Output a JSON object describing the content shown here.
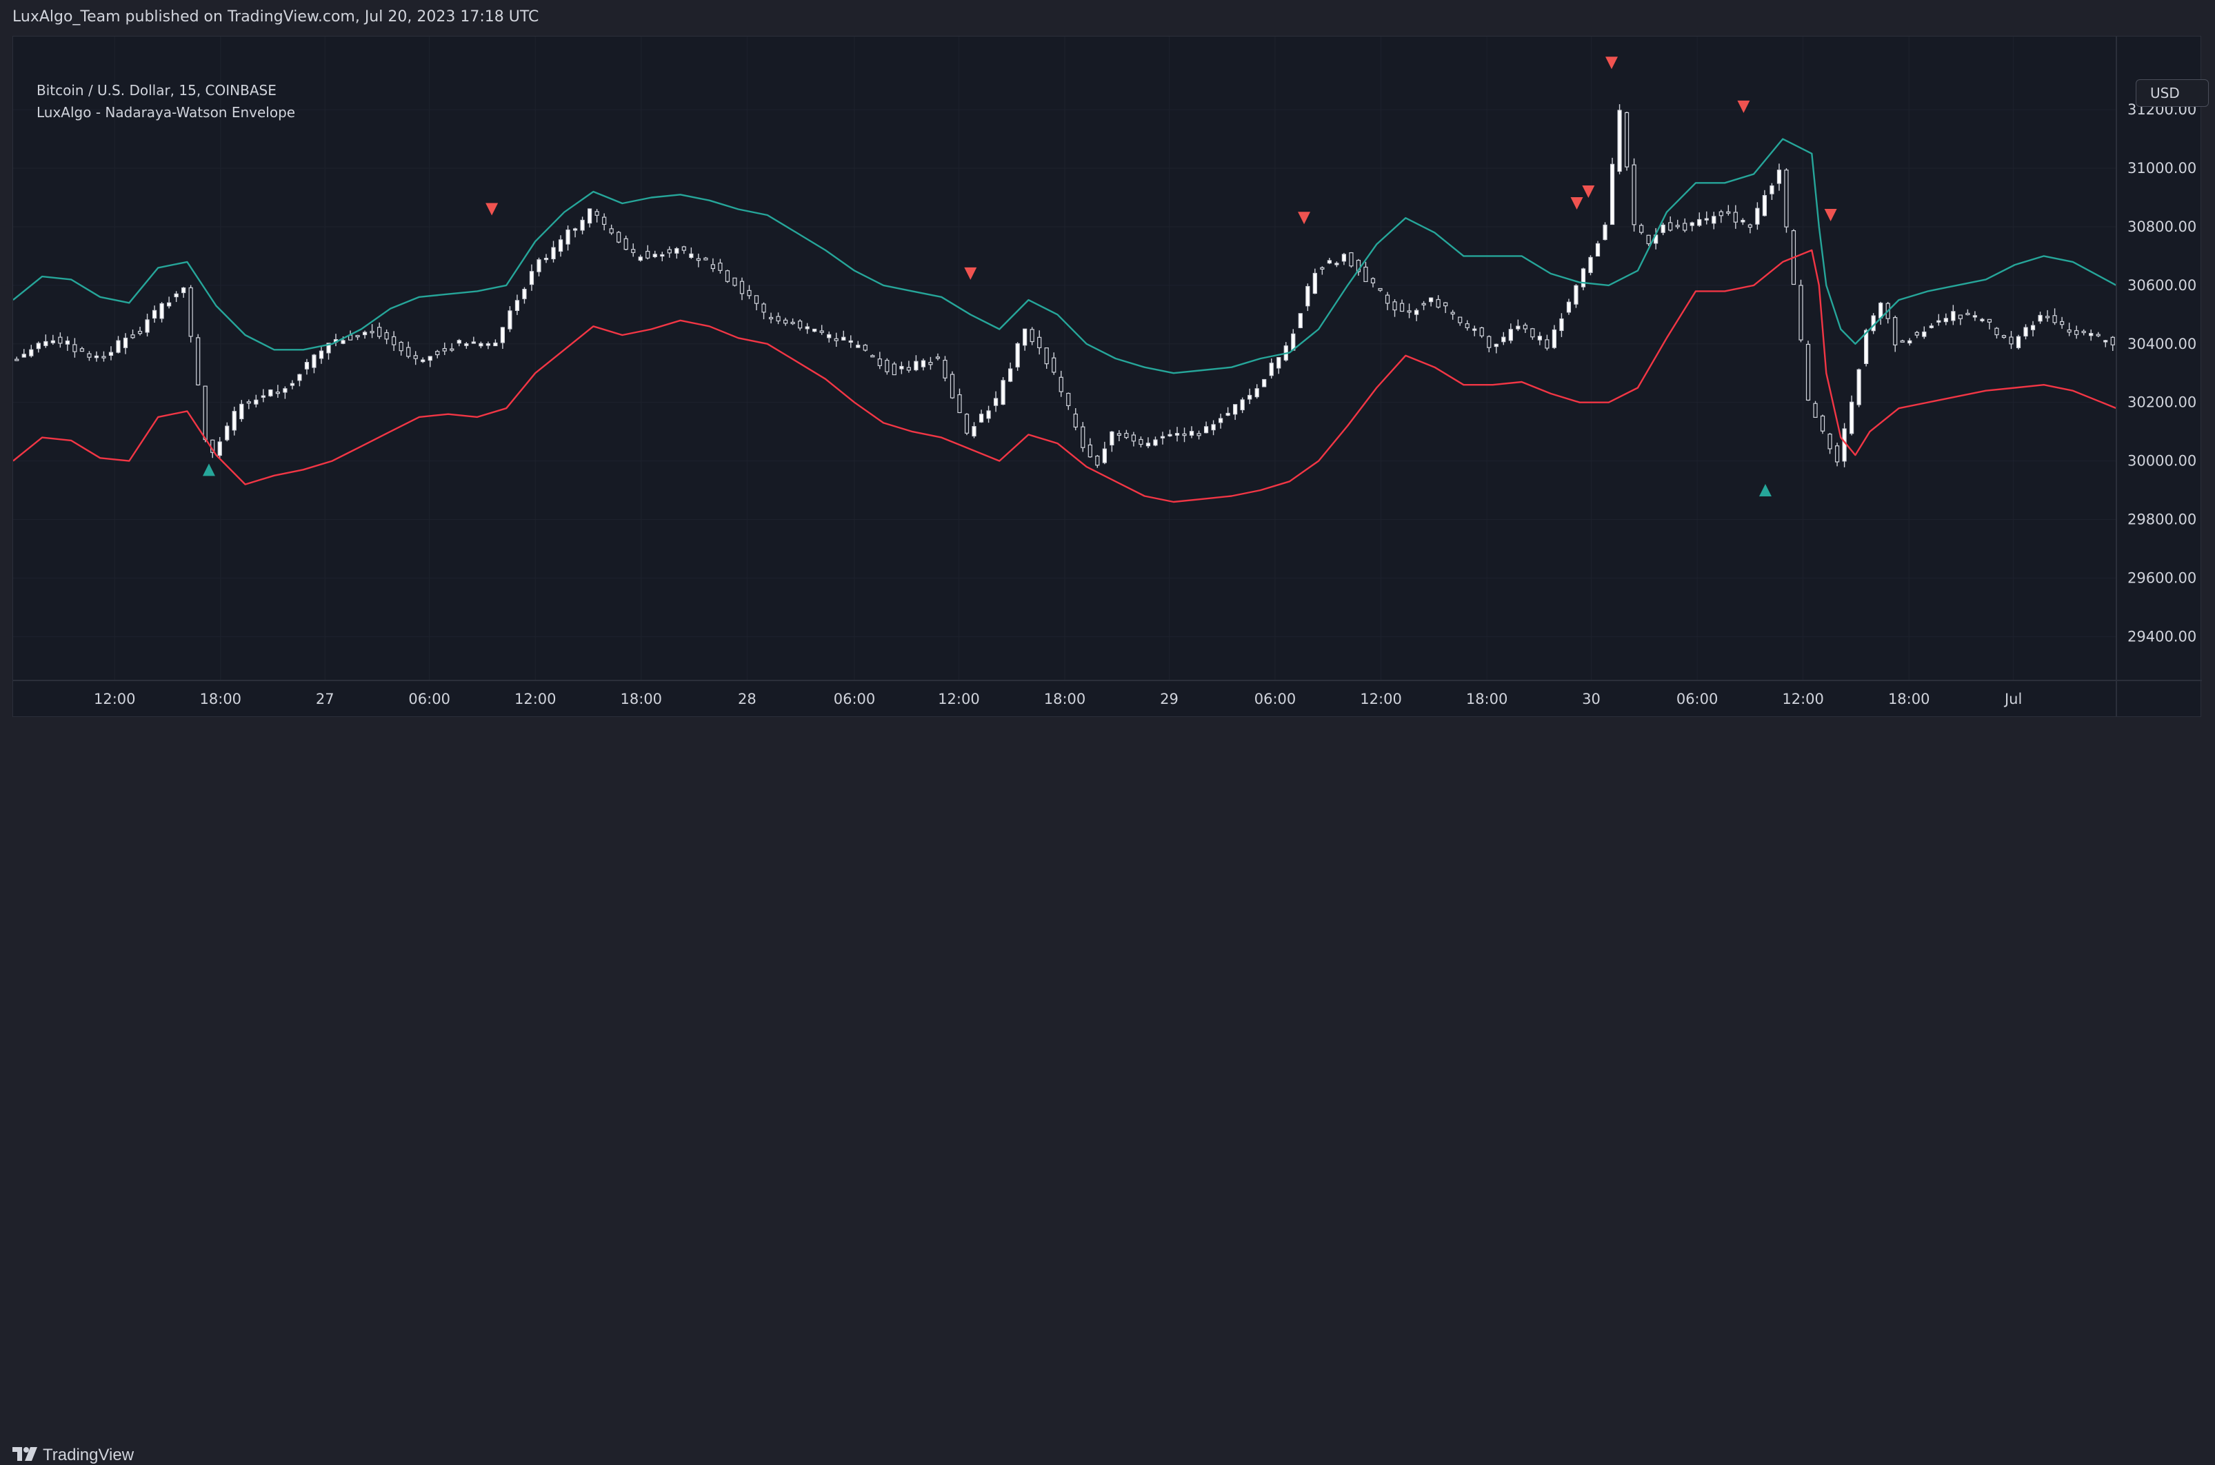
{
  "header": {
    "published": "LuxAlgo_Team published on TradingView.com, Jul 20, 2023 17:18 UTC"
  },
  "legend": {
    "symbol": "Bitcoin / U.S. Dollar, 15, COINBASE",
    "indicator": "LuxAlgo - Nadaraya-Watson Envelope"
  },
  "currency": "USD",
  "footer": {
    "brand": "TradingView"
  },
  "colors": {
    "upper_band": "#26a69a",
    "lower_band": "#f23645",
    "candle": "#d1d4dc",
    "buy_marker": "#26a69a",
    "sell_marker": "#f05350",
    "background": "#161a24"
  },
  "chart_data": {
    "type": "line",
    "title": "Bitcoin / U.S. Dollar, 15, COINBASE",
    "ylim": [
      29250,
      31450
    ],
    "y_ticks": [
      "31200.00",
      "31000.00",
      "30800.00",
      "30600.00",
      "30400.00",
      "30200.00",
      "30000.00",
      "29800.00",
      "29600.00",
      "29400.00"
    ],
    "x_range": [
      0,
      145
    ],
    "x_ticks": [
      {
        "x": 7,
        "label": "12:00"
      },
      {
        "x": 14.3,
        "label": "18:00"
      },
      {
        "x": 21.5,
        "label": "27"
      },
      {
        "x": 28.7,
        "label": "06:00"
      },
      {
        "x": 36,
        "label": "12:00"
      },
      {
        "x": 43.3,
        "label": "18:00"
      },
      {
        "x": 50.6,
        "label": "28"
      },
      {
        "x": 58,
        "label": "06:00"
      },
      {
        "x": 65.2,
        "label": "12:00"
      },
      {
        "x": 72.5,
        "label": "18:00"
      },
      {
        "x": 79.7,
        "label": "29"
      },
      {
        "x": 87,
        "label": "06:00"
      },
      {
        "x": 94.3,
        "label": "12:00"
      },
      {
        "x": 101.6,
        "label": "18:00"
      },
      {
        "x": 108.8,
        "label": "30"
      },
      {
        "x": 116.1,
        "label": "06:00"
      },
      {
        "x": 123.4,
        "label": "12:00"
      },
      {
        "x": 130.7,
        "label": "18:00"
      },
      {
        "x": 137.9,
        "label": "Jul"
      }
    ],
    "price": {
      "x": [
        0,
        3,
        6,
        9,
        12,
        13.7,
        16,
        19,
        22,
        25,
        28,
        31,
        33.5,
        36,
        38,
        40,
        43,
        46,
        49,
        52,
        55,
        58,
        61,
        64,
        66,
        68,
        70,
        72,
        74,
        75,
        76,
        78,
        80,
        82,
        85,
        88,
        90,
        92,
        94,
        96,
        98,
        100,
        102,
        104,
        106,
        108,
        110,
        111,
        112,
        113,
        114,
        116,
        118,
        120,
        122,
        124,
        125,
        126,
        127,
        128,
        129,
        130,
        132,
        134,
        136,
        138,
        140,
        142,
        145
      ],
      "y": [
        30350,
        30420,
        30350,
        30450,
        30600,
        30000,
        30200,
        30250,
        30400,
        30450,
        30350,
        30400,
        30400,
        30650,
        30750,
        30850,
        30700,
        30720,
        30650,
        30500,
        30450,
        30400,
        30300,
        30350,
        30100,
        30200,
        30450,
        30300,
        30050,
        30000,
        30100,
        30050,
        30100,
        30100,
        30200,
        30380,
        30650,
        30700,
        30600,
        30500,
        30550,
        30480,
        30400,
        30450,
        30400,
        30600,
        30800,
        31200,
        30800,
        30750,
        30800,
        30800,
        30850,
        30800,
        31000,
        30200,
        30100,
        30000,
        30200,
        30450,
        30550,
        30400,
        30450,
        30500,
        30480,
        30400,
        30500,
        30450,
        30400
      ]
    },
    "series": [
      {
        "name": "Upper",
        "x": [
          0,
          2,
          4,
          6,
          8,
          10,
          12,
          14,
          16,
          18,
          20,
          22,
          24,
          26,
          28,
          30,
          32,
          34,
          36,
          38,
          40,
          42,
          44,
          46,
          48,
          50,
          52,
          54,
          56,
          58,
          60,
          62,
          64,
          66,
          68,
          70,
          72,
          74,
          76,
          78,
          80,
          82,
          84,
          86,
          88,
          90,
          92,
          94,
          96,
          98,
          100,
          102,
          104,
          106,
          108,
          110,
          112,
          114,
          116,
          118,
          120,
          122,
          124,
          124.5,
          125,
          126,
          127,
          128,
          130,
          132,
          134,
          136,
          138,
          140,
          142,
          145
        ],
        "y": [
          30550,
          30630,
          30620,
          30560,
          30540,
          30660,
          30680,
          30530,
          30430,
          30380,
          30380,
          30400,
          30450,
          30520,
          30560,
          30570,
          30580,
          30600,
          30750,
          30850,
          30920,
          30880,
          30900,
          30910,
          30890,
          30860,
          30840,
          30780,
          30720,
          30650,
          30600,
          30580,
          30560,
          30500,
          30450,
          30550,
          30500,
          30400,
          30350,
          30320,
          30300,
          30310,
          30320,
          30350,
          30370,
          30450,
          30600,
          30740,
          30830,
          30780,
          30700,
          30700,
          30700,
          30640,
          30610,
          30600,
          30650,
          30850,
          30950,
          30950,
          30980,
          31100,
          31050,
          30800,
          30600,
          30450,
          30400,
          30450,
          30550,
          30580,
          30600,
          30620,
          30670,
          30700,
          30680,
          30600
        ]
      },
      {
        "name": "Lower",
        "x": [
          0,
          2,
          4,
          6,
          8,
          10,
          12,
          14,
          16,
          18,
          20,
          22,
          24,
          26,
          28,
          30,
          32,
          34,
          36,
          38,
          40,
          42,
          44,
          46,
          48,
          50,
          52,
          54,
          56,
          58,
          60,
          62,
          64,
          66,
          68,
          70,
          72,
          74,
          76,
          78,
          80,
          82,
          84,
          86,
          88,
          90,
          92,
          94,
          96,
          98,
          100,
          102,
          104,
          106,
          108,
          110,
          112,
          114,
          116,
          118,
          120,
          122,
          124,
          124.5,
          125,
          126,
          127,
          128,
          130,
          132,
          134,
          136,
          138,
          140,
          142,
          145
        ],
        "y": [
          30000,
          30080,
          30070,
          30010,
          30000,
          30150,
          30170,
          30020,
          29920,
          29950,
          29970,
          30000,
          30050,
          30100,
          30150,
          30160,
          30150,
          30180,
          30300,
          30380,
          30460,
          30430,
          30450,
          30480,
          30460,
          30420,
          30400,
          30340,
          30280,
          30200,
          30130,
          30100,
          30080,
          30040,
          30000,
          30090,
          30060,
          29980,
          29930,
          29880,
          29860,
          29870,
          29880,
          29900,
          29930,
          30000,
          30120,
          30250,
          30360,
          30320,
          30260,
          30260,
          30270,
          30230,
          30200,
          30200,
          30250,
          30420,
          30580,
          30580,
          30600,
          30680,
          30720,
          30600,
          30300,
          30080,
          30020,
          30100,
          30180,
          30200,
          30220,
          30240,
          30250,
          30260,
          30240,
          30180
        ]
      }
    ],
    "markers": [
      {
        "type": "buy",
        "x": 13.5,
        "y": 29970
      },
      {
        "type": "sell",
        "x": 33,
        "y": 30860
      },
      {
        "type": "sell",
        "x": 66,
        "y": 30640
      },
      {
        "type": "sell",
        "x": 89,
        "y": 30830
      },
      {
        "type": "sell",
        "x": 107.8,
        "y": 30880
      },
      {
        "type": "sell",
        "x": 108.6,
        "y": 30920
      },
      {
        "type": "sell",
        "x": 110.2,
        "y": 31360
      },
      {
        "type": "sell",
        "x": 119.3,
        "y": 31210
      },
      {
        "type": "buy",
        "x": 120.8,
        "y": 29900
      },
      {
        "type": "sell",
        "x": 125.3,
        "y": 30840
      }
    ]
  }
}
